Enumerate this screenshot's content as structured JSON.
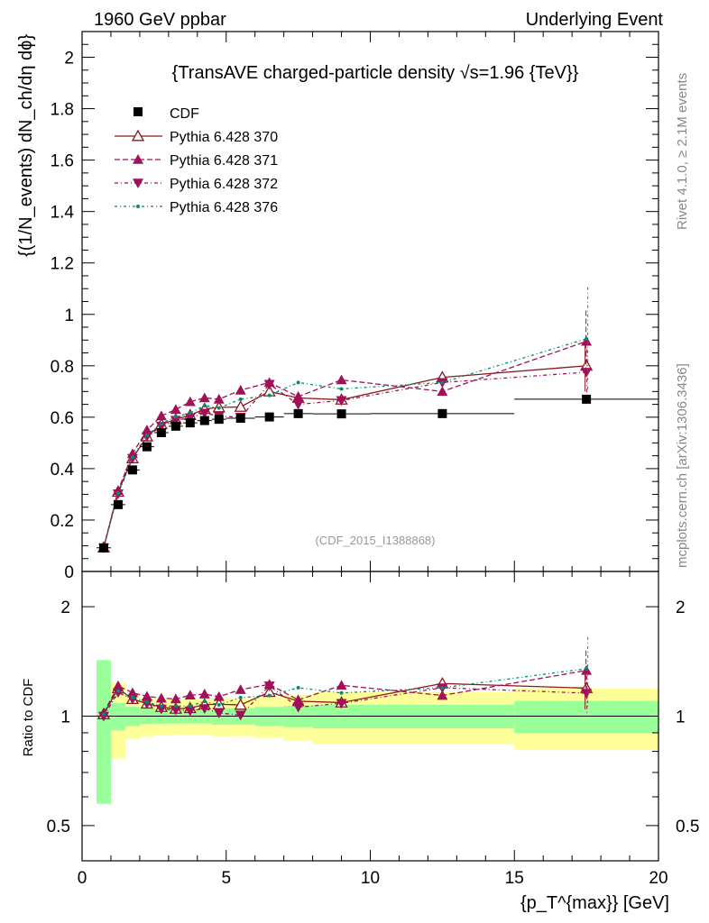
{
  "header": {
    "left": "1960 GeV ppbar",
    "right": "Underlying Event"
  },
  "side_labels": {
    "rivet": "Rivet 4.1.0, ≥ 2.1M events",
    "mcplots": "mcplots.cern.ch [arXiv:1306.3436]"
  },
  "chart_data": {
    "type": "scatter",
    "title": "{TransAVE charged-particle density √s=1.96 {TeV}}",
    "watermark": "(CDF_2015_I1388868)",
    "xlabel": "{p_T^{max}} [GeV]",
    "ylabel": "{(1/N_events) dN_ch/dη dϕ}",
    "ratio_ylabel": "Ratio to CDF",
    "xlim": [
      0,
      20
    ],
    "ylim": [
      0,
      2.1
    ],
    "ratio_ylim": [
      0.4,
      2.5
    ],
    "x_ticks": [
      0,
      5,
      10,
      15,
      20
    ],
    "y_ticks": [
      0,
      0.2,
      0.4,
      0.6,
      0.8,
      1,
      1.2,
      1.4,
      1.6,
      1.8,
      2
    ],
    "ratio_ticks": [
      0.5,
      1,
      2
    ],
    "x": [
      0.75,
      1.25,
      1.75,
      2.25,
      2.75,
      3.25,
      3.75,
      4.25,
      4.75,
      5.5,
      6.5,
      7.5,
      9.0,
      12.5,
      17.5
    ],
    "x_err": [
      0.25,
      0.25,
      0.25,
      0.25,
      0.25,
      0.25,
      0.25,
      0.25,
      0.25,
      0.5,
      0.5,
      0.5,
      1.0,
      2.5,
      2.5
    ],
    "data": {
      "name": "CDF",
      "y": [
        0.092,
        0.26,
        0.395,
        0.485,
        0.54,
        0.565,
        0.578,
        0.587,
        0.592,
        0.596,
        0.601,
        0.614,
        0.613,
        0.614,
        0.67
      ],
      "band_stat": [
        0.1,
        0.04,
        0.035,
        0.03,
        0.03,
        0.03,
        0.03,
        0.03,
        0.035,
        0.035,
        0.04,
        0.045,
        0.05,
        0.05,
        0.07
      ],
      "band_tot": [
        0.22,
        0.08,
        0.06,
        0.06,
        0.06,
        0.06,
        0.06,
        0.06,
        0.065,
        0.065,
        0.07,
        0.08,
        0.09,
        0.09,
        0.11
      ]
    },
    "series": [
      {
        "name": "Pythia 6.428 370",
        "color": "#8b1a1a",
        "dash": "",
        "marker": "open-triangle-up",
        "values": [
          0.093,
          0.31,
          0.44,
          0.525,
          0.572,
          0.592,
          0.608,
          0.632,
          0.638,
          0.64,
          0.7,
          0.675,
          0.668,
          0.755,
          0.8
        ]
      },
      {
        "name": "Pythia 6.428 371",
        "color": "#a0115a",
        "dash": "6,3",
        "marker": "triangle-up",
        "values": [
          0.094,
          0.315,
          0.458,
          0.55,
          0.605,
          0.63,
          0.66,
          0.675,
          0.67,
          0.705,
          0.735,
          0.68,
          0.745,
          0.7,
          0.895
        ]
      },
      {
        "name": "Pythia 6.428 372",
        "color": "#a0115a",
        "dash": "4,3,1,3",
        "marker": "triangle-down",
        "values": [
          0.092,
          0.302,
          0.44,
          0.525,
          0.565,
          0.588,
          0.598,
          0.616,
          0.604,
          0.6,
          0.728,
          0.65,
          0.665,
          0.735,
          0.775
        ]
      },
      {
        "name": "Pythia 6.428 376",
        "color": "#008b74",
        "dash": "3,3,1,3",
        "marker": "dot",
        "values": [
          0.093,
          0.305,
          0.445,
          0.53,
          0.575,
          0.602,
          0.616,
          0.645,
          0.636,
          0.67,
          0.685,
          0.735,
          0.71,
          0.735,
          0.905
        ]
      }
    ],
    "errors_last": [
      0.1,
      0.12,
      0.09,
      0.2
    ]
  }
}
